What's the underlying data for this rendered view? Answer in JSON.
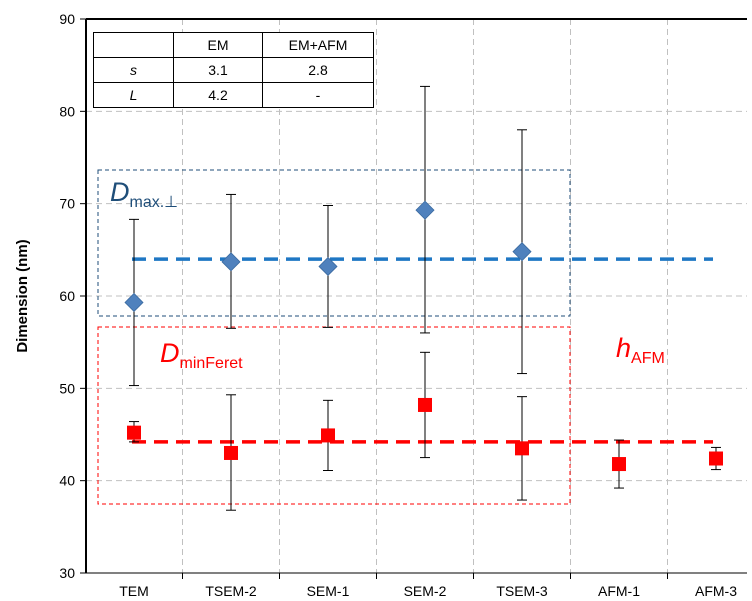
{
  "chart_data": {
    "type": "scatter",
    "ylabel": "Dimension (nm)",
    "ylim": [
      30,
      90
    ],
    "yticks": [
      30,
      40,
      50,
      60,
      70,
      80,
      90
    ],
    "categories": [
      "TEM",
      "TSEM-2",
      "SEM-1",
      "SEM-2",
      "TSEM-3",
      "AFM-1",
      "AFM-3"
    ],
    "grid": true,
    "series": [
      {
        "key": "dmax",
        "marker": "diamond",
        "color": "#4f81bd",
        "points": [
          {
            "category": "TEM",
            "y": 59.3,
            "err_low": 50.3,
            "err_high": 68.3
          },
          {
            "category": "TSEM-2",
            "y": 63.7,
            "err_low": 56.5,
            "err_high": 71.0
          },
          {
            "category": "SEM-1",
            "y": 63.2,
            "err_low": 56.6,
            "err_high": 69.8
          },
          {
            "category": "SEM-2",
            "y": 69.3,
            "err_low": 56.0,
            "err_high": 82.7
          },
          {
            "category": "TSEM-3",
            "y": 64.8,
            "err_low": 51.6,
            "err_high": 78.0
          }
        ]
      },
      {
        "key": "dmin",
        "marker": "square",
        "color": "#ff0000",
        "points": [
          {
            "category": "TEM",
            "y": 45.2,
            "err_low": 44.2,
            "err_high": 46.4
          },
          {
            "category": "TSEM-2",
            "y": 43.0,
            "err_low": 36.8,
            "err_high": 49.3
          },
          {
            "category": "SEM-1",
            "y": 44.9,
            "err_low": 41.1,
            "err_high": 48.7
          },
          {
            "category": "SEM-2",
            "y": 48.2,
            "err_low": 42.5,
            "err_high": 53.9
          },
          {
            "category": "TSEM-3",
            "y": 43.5,
            "err_low": 37.9,
            "err_high": 49.1
          },
          {
            "category": "AFM-1",
            "y": 41.8,
            "err_low": 39.2,
            "err_high": 44.4
          },
          {
            "category": "AFM-3",
            "y": 42.4,
            "err_low": 41.2,
            "err_high": 43.6
          }
        ]
      }
    ],
    "mean_lines": [
      {
        "key": "dmax",
        "y": 64.0,
        "color": "#1f77c4"
      },
      {
        "key": "dmin",
        "y": 44.2,
        "color": "#ff0000"
      }
    ],
    "annotations": {
      "dmax": {
        "main": "D",
        "sub": "max.⊥",
        "color": "#1f4e79"
      },
      "dmin": {
        "main": "D",
        "sub": "minFeret",
        "color": "#ff0000"
      },
      "hafm": {
        "main": "h",
        "sub": "AFM",
        "color": "#ff0000"
      }
    },
    "table": {
      "header": [
        "",
        "EM",
        "EM+AFM"
      ],
      "rows": [
        [
          "s",
          "3.1",
          "2.8"
        ],
        [
          "L",
          "4.2",
          "-"
        ]
      ]
    }
  }
}
